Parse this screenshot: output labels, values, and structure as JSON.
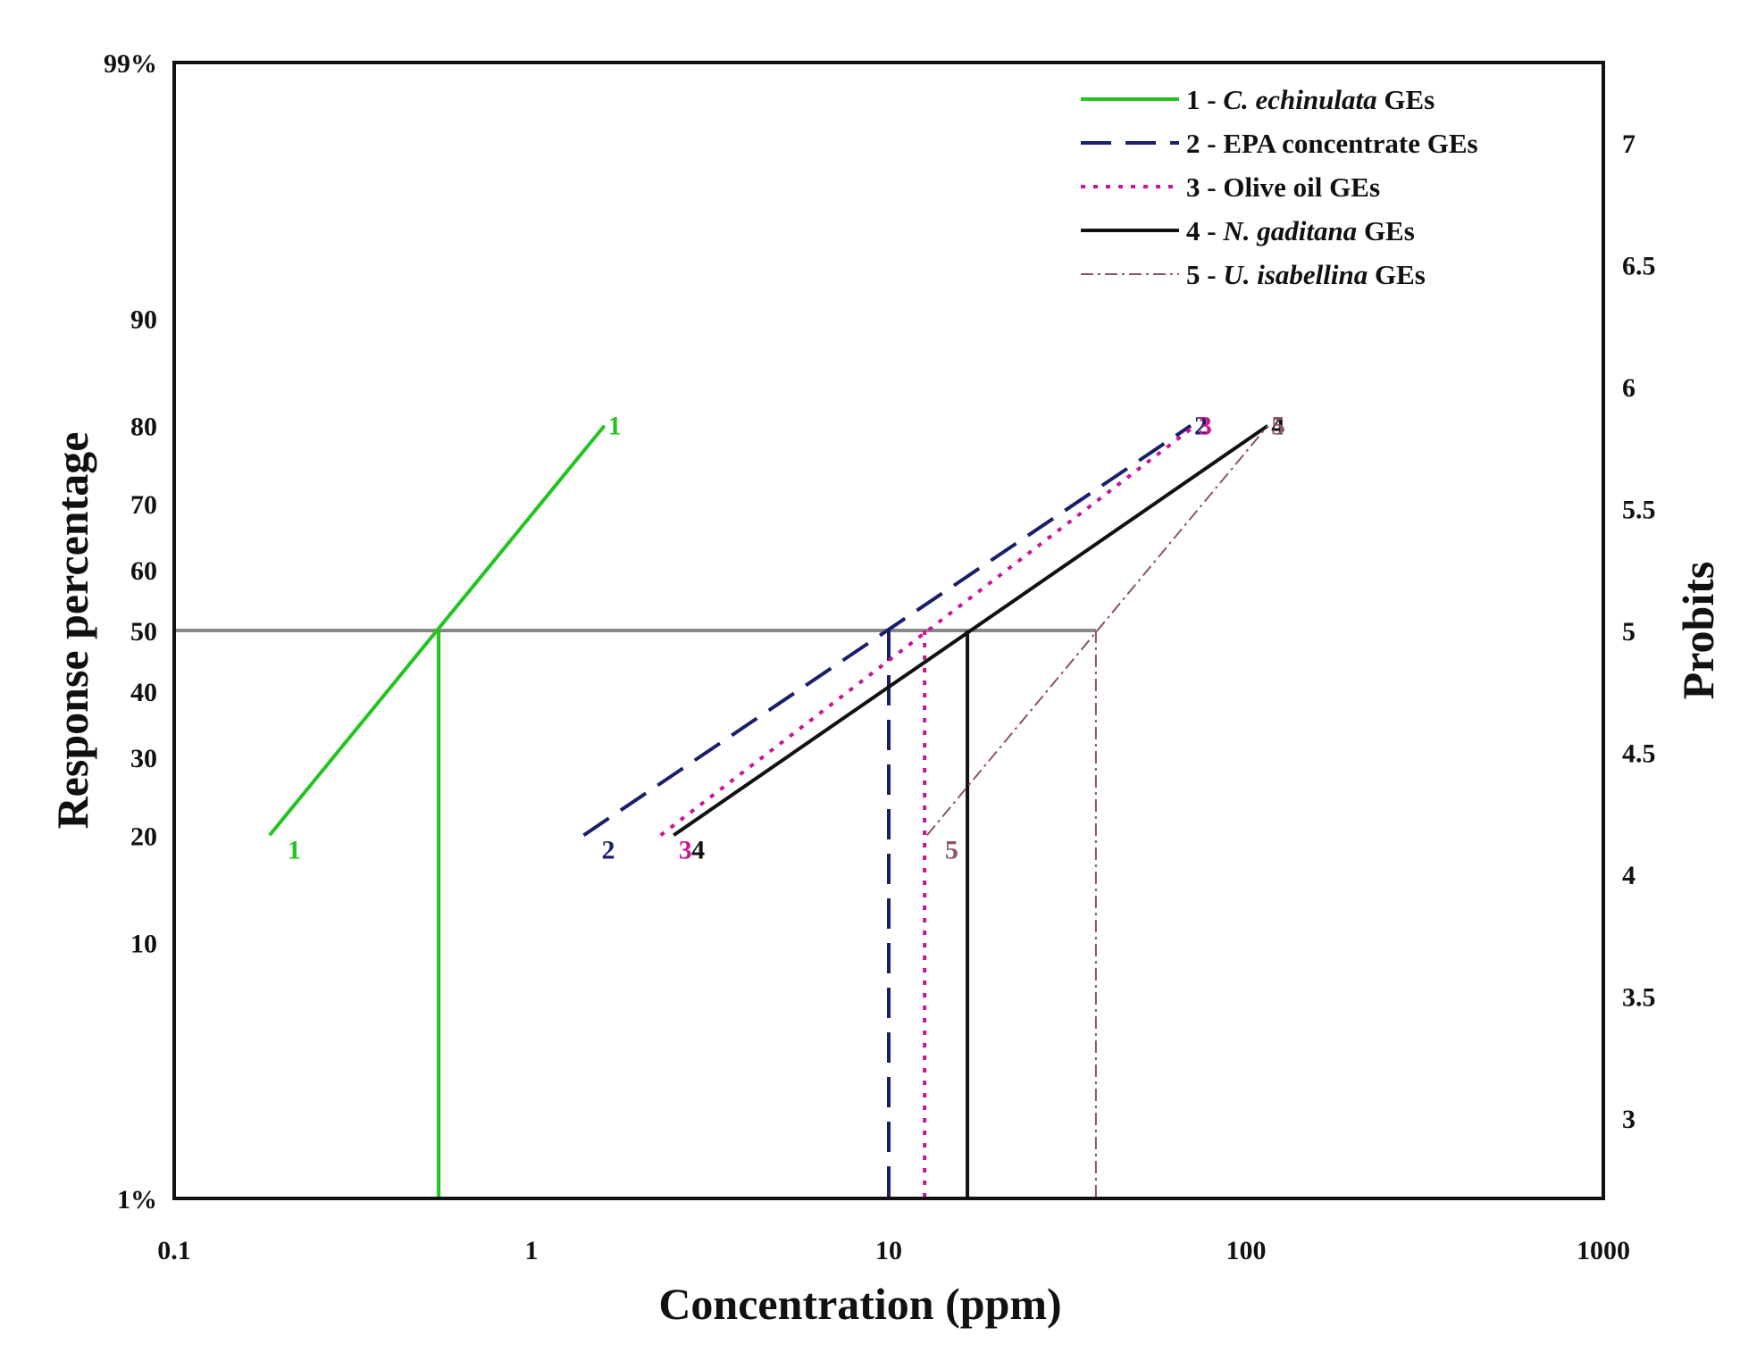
{
  "chart_data": {
    "type": "line",
    "xscale": "log",
    "xlim": [
      0.1,
      1000
    ],
    "xlabel": "Concentration (ppm)",
    "ylabel": "Response percentage",
    "ylabel_right": "Probits",
    "x_ticks": [
      {
        "value": 0.1,
        "label": "0.1"
      },
      {
        "value": 1,
        "label": "1"
      },
      {
        "value": 10,
        "label": "10"
      },
      {
        "value": 100,
        "label": "100"
      },
      {
        "value": 1000,
        "label": "1000"
      }
    ],
    "probit_range": [
      2.67,
      7.33
    ],
    "y_ticks_left": [
      {
        "probit": 7.33,
        "label": "99%"
      },
      {
        "probit": 6.28,
        "label": "90"
      },
      {
        "probit": 5.84,
        "label": "80"
      },
      {
        "probit": 5.52,
        "label": "70"
      },
      {
        "probit": 5.25,
        "label": "60"
      },
      {
        "probit": 5.0,
        "label": "50"
      },
      {
        "probit": 4.75,
        "label": "40"
      },
      {
        "probit": 4.48,
        "label": "30"
      },
      {
        "probit": 4.16,
        "label": "20"
      },
      {
        "probit": 3.72,
        "label": "10"
      },
      {
        "probit": 2.67,
        "label": "1%"
      }
    ],
    "y_ticks_right": [
      {
        "probit": 7,
        "label": "7"
      },
      {
        "probit": 6.5,
        "label": "6.5"
      },
      {
        "probit": 6,
        "label": "6"
      },
      {
        "probit": 5.5,
        "label": "5.5"
      },
      {
        "probit": 5,
        "label": "5"
      },
      {
        "probit": 4.5,
        "label": "4.5"
      },
      {
        "probit": 4,
        "label": "4"
      },
      {
        "probit": 3.5,
        "label": "3.5"
      },
      {
        "probit": 3,
        "label": "3"
      }
    ],
    "lc50_response": 50,
    "series": [
      {
        "id": "1",
        "num": "1 - ",
        "name": "C. echinulata",
        "suffix": " GEs",
        "italic": true,
        "color": "#22c41e",
        "dash": "",
        "width": 4,
        "x": [
          0.185,
          1.6
        ],
        "y_probit": [
          4.16,
          5.84
        ],
        "lc50": 0.55,
        "label_start": "1",
        "label_end": "1"
      },
      {
        "id": "2",
        "num": "2 - ",
        "name": "EPA concentrate",
        "suffix": " GEs",
        "italic": false,
        "color": "#1a1f6b",
        "dash": "34,16",
        "width": 4,
        "x": [
          1.4,
          70
        ],
        "y_probit": [
          4.16,
          5.84
        ],
        "lc50": 10.0,
        "label_start": "2",
        "label_end": "2"
      },
      {
        "id": "3",
        "num": "3 - ",
        "name": "Olive oil",
        "suffix": " GEs",
        "italic": false,
        "color": "#cc1493",
        "dash": "5,9",
        "width": 4,
        "x": [
          2.3,
          72
        ],
        "y_probit": [
          4.16,
          5.84
        ],
        "lc50": 12.6,
        "label_start": "3",
        "label_end": "3"
      },
      {
        "id": "4",
        "num": "4 - ",
        "name": "N. gaditana",
        "suffix": " GEs",
        "italic": true,
        "color": "#111111",
        "dash": "",
        "width": 4,
        "x": [
          2.5,
          115
        ],
        "y_probit": [
          4.16,
          5.84
        ],
        "lc50": 16.6,
        "label_start": "4",
        "label_end": "4"
      },
      {
        "id": "5",
        "num": "5 - ",
        "name": "U. isabellina",
        "suffix": " GEs",
        "italic": true,
        "color": "#8a5560",
        "dash": "14,5,3,5",
        "width": 2,
        "x": [
          12.8,
          115
        ],
        "y_probit": [
          4.16,
          5.84
        ],
        "lc50": 38.0,
        "label_start": "5",
        "label_end": "5"
      }
    ],
    "legend_position": "top-right"
  }
}
